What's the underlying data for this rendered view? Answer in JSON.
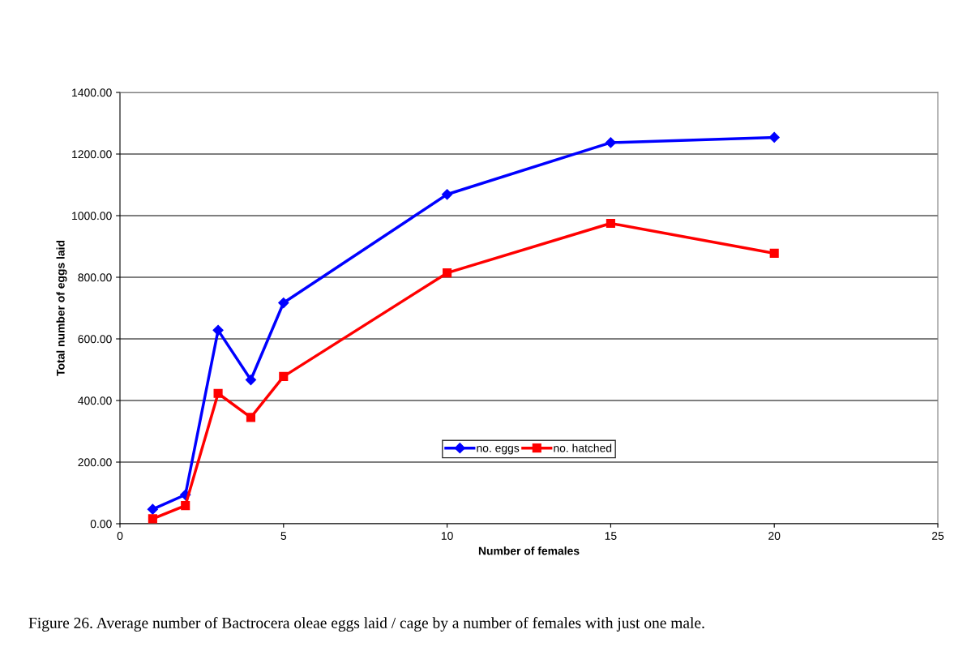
{
  "chart_data": {
    "type": "line",
    "xlabel": "Number of females",
    "ylabel": "Total number of eggs laid",
    "x": [
      1,
      2,
      3,
      4,
      5,
      10,
      15,
      20
    ],
    "series": [
      {
        "name": "no. eggs",
        "color": "#0000ff",
        "marker": "diamond",
        "values": [
          47,
          94,
          628,
          467,
          717,
          1069,
          1237,
          1254
        ]
      },
      {
        "name": "no. hatched",
        "color": "#ff0000",
        "marker": "square",
        "values": [
          16,
          59,
          423,
          345,
          478,
          814,
          975,
          878
        ]
      }
    ],
    "xlim": [
      0,
      25
    ],
    "xticks": [
      0,
      5,
      10,
      15,
      20,
      25
    ],
    "ylim": [
      0,
      1400
    ],
    "yticks": [
      {
        "value": 0,
        "label": "0.00"
      },
      {
        "value": 200,
        "label": "200.00"
      },
      {
        "value": 400,
        "label": "400.00"
      },
      {
        "value": 600,
        "label": "600.00"
      },
      {
        "value": 800,
        "label": "800.00"
      },
      {
        "value": 1000,
        "label": "1000.00"
      },
      {
        "value": 1200,
        "label": "1200.00"
      },
      {
        "value": 1400,
        "label": "1400.00"
      }
    ],
    "grid": "y",
    "legend": "bottom",
    "line_style": "solid",
    "annotations": [
      "Figure 26. Average number of Bactrocera oleae eggs laid / cage by a number of females with just one male."
    ]
  }
}
